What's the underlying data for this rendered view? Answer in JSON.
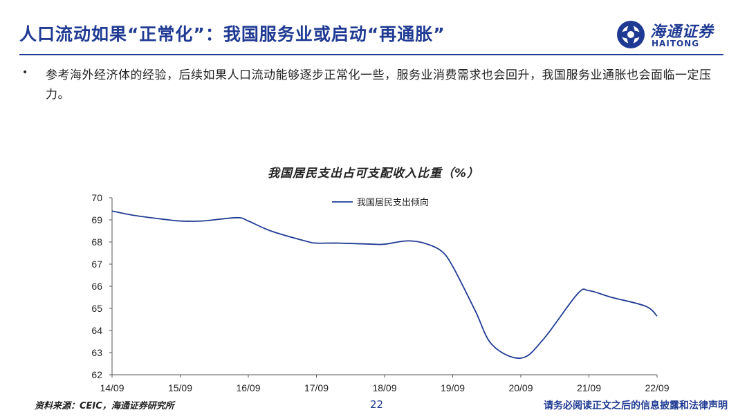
{
  "header": {
    "title": "人口流动如果“正常化”：我国服务业或启动“再通胀”",
    "logo_cn": "海通证券",
    "logo_en": "HAITONG",
    "brand_color": "#1f3a93"
  },
  "body": {
    "bullet": "参考海外经济体的经验，后续如果人口流动能够逐步正常化一些，服务业消费需求也会回升，我国服务业通胀也会面临一定压力。"
  },
  "chart_data": {
    "type": "line",
    "title": "我国居民支出占可支配收入比重（%）",
    "x_ticks": [
      "14/09",
      "15/09",
      "16/09",
      "17/09",
      "18/09",
      "19/09",
      "20/09",
      "21/09",
      "22/09"
    ],
    "y_ticks": [
      62,
      63,
      64,
      65,
      66,
      67,
      68,
      69,
      70
    ],
    "ylim": [
      62,
      70
    ],
    "legend_position": "top-center",
    "grid": false,
    "series": [
      {
        "name": "我国居民支出倾向",
        "color": "#1f3a93",
        "x": [
          2014.67,
          2015.0,
          2015.5,
          2015.67,
          2016.0,
          2016.5,
          2016.67,
          2017.0,
          2017.5,
          2017.67,
          2018.0,
          2018.5,
          2018.67,
          2019.0,
          2019.25,
          2019.5,
          2019.67,
          2020.0,
          2020.25,
          2020.67,
          2021.0,
          2021.5,
          2021.67,
          2022.0,
          2022.5,
          2022.67
        ],
        "y": [
          69.4,
          69.2,
          69.0,
          68.95,
          68.95,
          69.1,
          68.95,
          68.5,
          68.05,
          67.95,
          67.95,
          67.9,
          67.9,
          68.05,
          67.95,
          67.6,
          66.9,
          64.9,
          63.35,
          62.75,
          63.6,
          65.65,
          65.8,
          65.5,
          65.1,
          64.65
        ]
      }
    ]
  },
  "footer": {
    "source": "资料来源：CEIC，海通证券研究所",
    "page": "22",
    "disclaimer": "请务必阅读正文之后的信息披露和法律声明"
  }
}
